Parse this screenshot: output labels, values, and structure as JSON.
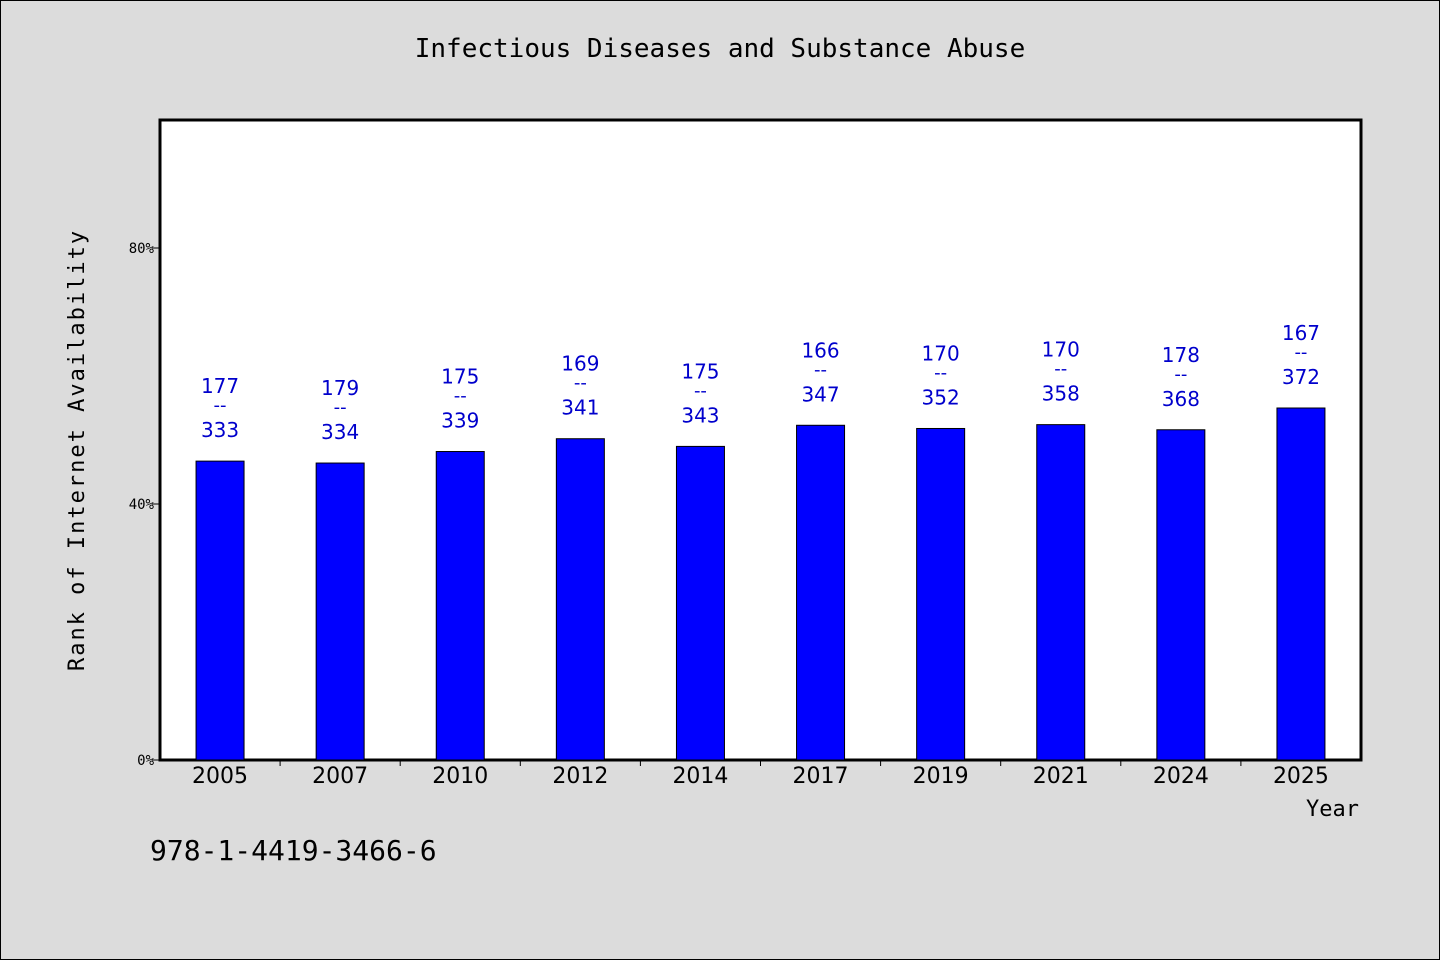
{
  "chart_data": {
    "type": "bar",
    "title": "Infectious Diseases and Substance Abuse",
    "xlabel": "Year",
    "ylabel": "Rank of Internet Availability",
    "ylim": [
      0,
      100
    ],
    "yticks": [
      0,
      40,
      80
    ],
    "ytick_labels": [
      "0%",
      "40%",
      "80%"
    ],
    "categories": [
      "2005",
      "2007",
      "2010",
      "2012",
      "2014",
      "2017",
      "2019",
      "2021",
      "2024",
      "2025"
    ],
    "values": [
      46.7,
      46.4,
      48.2,
      50.2,
      49.0,
      52.3,
      51.8,
      52.4,
      51.6,
      55.0
    ],
    "data_labels": [
      {
        "top": "177",
        "sep": "--",
        "bottom": "333"
      },
      {
        "top": "179",
        "sep": "--",
        "bottom": "334"
      },
      {
        "top": "175",
        "sep": "--",
        "bottom": "339"
      },
      {
        "top": "169",
        "sep": "--",
        "bottom": "341"
      },
      {
        "top": "175",
        "sep": "--",
        "bottom": "343"
      },
      {
        "top": "166",
        "sep": "--",
        "bottom": "347"
      },
      {
        "top": "170",
        "sep": "--",
        "bottom": "352"
      },
      {
        "top": "170",
        "sep": "--",
        "bottom": "358"
      },
      {
        "top": "178",
        "sep": "--",
        "bottom": "368"
      },
      {
        "top": "167",
        "sep": "--",
        "bottom": "372"
      }
    ],
    "grid": false,
    "bar_color": "#0000ff",
    "label_color": "#0000cc",
    "background": "#dcdcdc",
    "plot_background": "#ffffff"
  },
  "footer": {
    "isbn": "978-1-4419-3466-6"
  }
}
